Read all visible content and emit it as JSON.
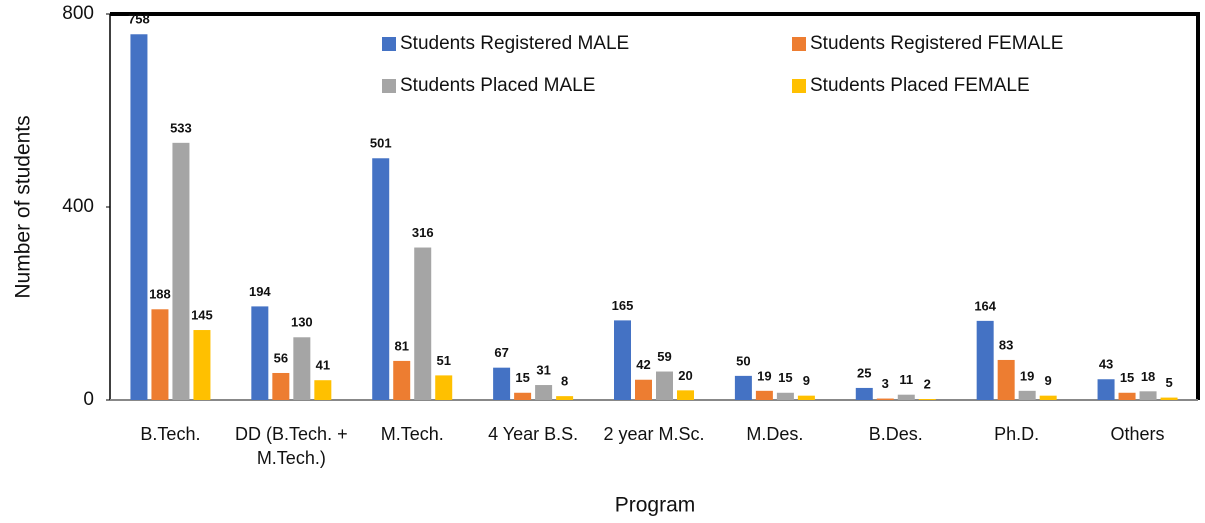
{
  "chart_data": {
    "type": "bar",
    "x_label": "Program",
    "y_label": "Number of students",
    "categories": [
      "B.Tech.",
      "DD (B.Tech. + M.Tech.)",
      "M.Tech.",
      "4 Year B.S.",
      "2 year M.Sc.",
      "M.Des.",
      "B.Des.",
      "Ph.D.",
      "Others"
    ],
    "series": [
      {
        "name": "Students Registered MALE",
        "color": "#4472c4",
        "values": [
          758,
          194,
          501,
          67,
          165,
          50,
          25,
          164,
          43
        ]
      },
      {
        "name": "Students Registered FEMALE",
        "color": "#ed7d31",
        "values": [
          188,
          56,
          81,
          15,
          42,
          19,
          3,
          83,
          15
        ]
      },
      {
        "name": "Students Placed MALE",
        "color": "#a5a5a5",
        "values": [
          533,
          130,
          316,
          31,
          59,
          15,
          11,
          19,
          18
        ]
      },
      {
        "name": "Students Placed FEMALE",
        "color": "#ffc000",
        "values": [
          145,
          41,
          51,
          8,
          20,
          9,
          2,
          9,
          5
        ]
      }
    ],
    "ylim": [
      0,
      800
    ],
    "yticks": [
      0,
      400,
      800
    ],
    "legend": "top",
    "grid": false
  }
}
